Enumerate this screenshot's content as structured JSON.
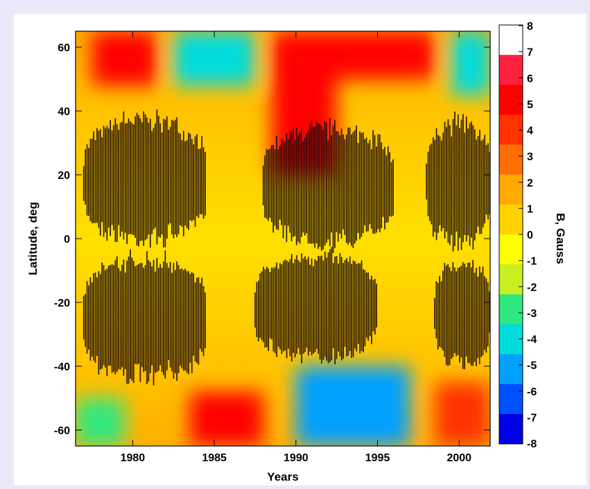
{
  "chart_data": {
    "type": "heatmap",
    "title": "",
    "xlabel": "Years",
    "ylabel": "Latitude, deg",
    "xlim": [
      1976.5,
      2001.9
    ],
    "ylim": [
      -65,
      65
    ],
    "x_ticks": [
      1980,
      1985,
      1990,
      1995,
      2000
    ],
    "y_ticks": [
      -60,
      -40,
      -20,
      0,
      20,
      40,
      60
    ],
    "colorbar": {
      "label": "B, Gauss",
      "range": [
        -8,
        8
      ],
      "ticks": [
        8,
        7,
        6,
        5,
        4,
        3,
        2,
        1,
        0,
        -1,
        -2,
        -3,
        -4,
        -5,
        -6,
        -7,
        -8
      ],
      "colors": [
        "#0000e6",
        "#0050ff",
        "#00a0ff",
        "#00dcdc",
        "#30e880",
        "#c8f020",
        "#ffff00",
        "#ffd200",
        "#ffaa00",
        "#ff6e00",
        "#ff3200",
        "#ff0000",
        "#ff2040",
        "#ffffff"
      ],
      "grid": "off"
    },
    "sunspot_belts": [
      {
        "x": [
          1977.0,
          1984.5
        ],
        "lat": [
          -1,
          38
        ]
      },
      {
        "x": [
          1977.0,
          1984.5
        ],
        "lat": [
          -44,
          -6
        ]
      },
      {
        "x": [
          1988.0,
          1996.0
        ],
        "lat": [
          -2,
          35
        ]
      },
      {
        "x": [
          1987.5,
          1995.0
        ],
        "lat": [
          -38,
          -5
        ]
      },
      {
        "x": [
          1998.0,
          2001.9
        ],
        "lat": [
          -2,
          37
        ]
      },
      {
        "x": [
          1998.5,
          2001.9
        ],
        "lat": [
          -40,
          -7
        ]
      }
    ],
    "field_regions": [
      {
        "x": [
          1977.5,
          1981.5
        ],
        "lat": [
          48,
          65
        ],
        "value": 6
      },
      {
        "x": [
          1982.5,
          1987.5
        ],
        "lat": [
          48,
          65
        ],
        "value": -4
      },
      {
        "x": [
          1988.5,
          1992.5
        ],
        "lat": [
          20,
          65
        ],
        "value": 6
      },
      {
        "x": [
          1992.5,
          1998.5
        ],
        "lat": [
          50,
          65
        ],
        "value": 7
      },
      {
        "x": [
          1999.5,
          2001.9
        ],
        "lat": [
          45,
          65
        ],
        "value": -4
      },
      {
        "x": [
          1976.5,
          1979.5
        ],
        "lat": [
          -65,
          -50
        ],
        "value": -3
      },
      {
        "x": [
          1983.5,
          1988.0
        ],
        "lat": [
          -65,
          -48
        ],
        "value": 7
      },
      {
        "x": [
          1990.0,
          1997.0
        ],
        "lat": [
          -65,
          -40
        ],
        "value": -6
      },
      {
        "x": [
          1998.5,
          2001.9
        ],
        "lat": [
          -65,
          -45
        ],
        "value": 5
      }
    ]
  }
}
